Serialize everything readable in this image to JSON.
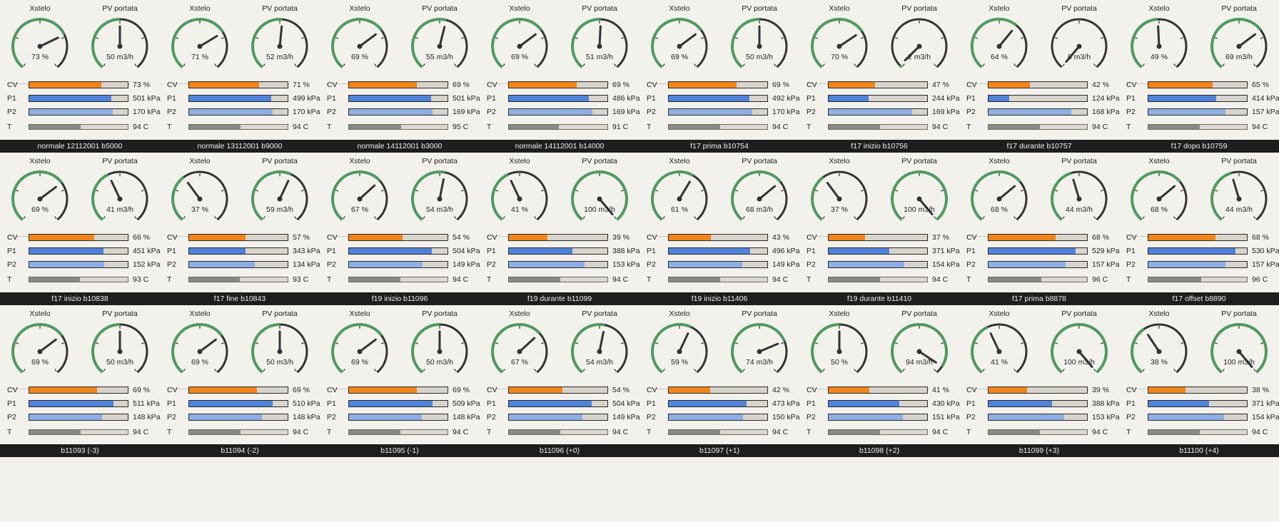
{
  "labels": {
    "gauge_left": "Xstelo",
    "gauge_right": "PV portata",
    "cv": "CV",
    "p1": "P1",
    "p2": "P2",
    "t": "T"
  },
  "colors": {
    "cv": "#f28518",
    "p1": "#4f82d8",
    "p2": "#8eafe3",
    "t": "#8a8983",
    "gauge_arc": "#4f9a5f",
    "gauge_track": "#333333",
    "needle": "#333333"
  },
  "rows": [
    {
      "caption": null,
      "panels": [
        {
          "xstelo": 73,
          "xstelo_label": "73 %",
          "pv": 50,
          "pv_label": "50 m3/h",
          "cv": 73,
          "cv_label": "73 %",
          "p1": 501,
          "p1_label": "501 kPa",
          "p2": 170,
          "p2_label": "170 kPa",
          "t": 94,
          "t_label": "94 C"
        },
        {
          "xstelo": 71,
          "xstelo_label": "71 %",
          "pv": 52,
          "pv_label": "52 m3/h",
          "cv": 71,
          "cv_label": "71 %",
          "p1": 499,
          "p1_label": "499 kPa",
          "p2": 170,
          "p2_label": "170 kPa",
          "t": 94,
          "t_label": "94 C"
        },
        {
          "xstelo": 69,
          "xstelo_label": "69 %",
          "pv": 55,
          "pv_label": "55 m3/h",
          "cv": 69,
          "cv_label": "69 %",
          "p1": 501,
          "p1_label": "501 kPa",
          "p2": 169,
          "p2_label": "169 kPa",
          "t": 95,
          "t_label": "95 C"
        },
        {
          "xstelo": 69,
          "xstelo_label": "69 %",
          "pv": 51,
          "pv_label": "51 m3/h",
          "cv": 69,
          "cv_label": "69 %",
          "p1": 486,
          "p1_label": "486 kPa",
          "p2": 169,
          "p2_label": "169 kPa",
          "t": 91,
          "t_label": "91 C"
        },
        {
          "xstelo": 69,
          "xstelo_label": "69 %",
          "pv": 50,
          "pv_label": "50 m3/h",
          "cv": 69,
          "cv_label": "69 %",
          "p1": 492,
          "p1_label": "492 kPa",
          "p2": 170,
          "p2_label": "170 kPa",
          "t": 94,
          "t_label": "94 C"
        },
        {
          "xstelo": 70,
          "xstelo_label": "70 %",
          "pv": 2,
          "pv_label": "2 m3/h",
          "cv": 47,
          "cv_label": "47 %",
          "p1": 244,
          "p1_label": "244 kPa",
          "p2": 169,
          "p2_label": "169 kPa",
          "t": 94,
          "t_label": "94 C"
        },
        {
          "xstelo": 64,
          "xstelo_label": "64 %",
          "pv": 0,
          "pv_label": "0 m3/h",
          "cv": 42,
          "cv_label": "42 %",
          "p1": 124,
          "p1_label": "124 kPa",
          "p2": 168,
          "p2_label": "168 kPa",
          "t": 94,
          "t_label": "94 C"
        },
        {
          "xstelo": 49,
          "xstelo_label": "49 %",
          "pv": 69,
          "pv_label": "69 m3/h",
          "cv": 65,
          "cv_label": "65 %",
          "p1": 414,
          "p1_label": "414 kPa",
          "p2": 157,
          "p2_label": "157 kPa",
          "t": 94,
          "t_label": "94 C"
        }
      ]
    },
    {
      "caption": [
        "normale 12112001 b5000",
        "normale 13112001 b9000",
        "normale 14112001 b3000",
        "normale 14112001 b14000",
        "f17 prima b10754",
        "f17 inizio b10756",
        "f17 durante b10757",
        "f17 dopo b10759"
      ],
      "panels": [
        {
          "xstelo": 69,
          "xstelo_label": "69 %",
          "pv": 41,
          "pv_label": "41 m3/h",
          "cv": 66,
          "cv_label": "66 %",
          "p1": 451,
          "p1_label": "451 kPa",
          "p2": 152,
          "p2_label": "152 kPa",
          "t": 93,
          "t_label": "93 C"
        },
        {
          "xstelo": 37,
          "xstelo_label": "37 %",
          "pv": 59,
          "pv_label": "59 m3/h",
          "cv": 57,
          "cv_label": "57 %",
          "p1": 343,
          "p1_label": "343 kPa",
          "p2": 134,
          "p2_label": "134 kPa",
          "t": 93,
          "t_label": "93 C"
        },
        {
          "xstelo": 67,
          "xstelo_label": "67 %",
          "pv": 54,
          "pv_label": "54 m3/h",
          "cv": 54,
          "cv_label": "54 %",
          "p1": 504,
          "p1_label": "504 kPa",
          "p2": 149,
          "p2_label": "149 kPa",
          "t": 94,
          "t_label": "94 C"
        },
        {
          "xstelo": 41,
          "xstelo_label": "41 %",
          "pv": 100,
          "pv_label": "100 m3/h",
          "cv": 39,
          "cv_label": "39 %",
          "p1": 388,
          "p1_label": "388 kPa",
          "p2": 153,
          "p2_label": "153 kPa",
          "t": 94,
          "t_label": "94 C"
        },
        {
          "xstelo": 61,
          "xstelo_label": "61 %",
          "pv": 68,
          "pv_label": "68 m3/h",
          "cv": 43,
          "cv_label": "43 %",
          "p1": 496,
          "p1_label": "496 kPa",
          "p2": 149,
          "p2_label": "149 kPa",
          "t": 94,
          "t_label": "94 C"
        },
        {
          "xstelo": 37,
          "xstelo_label": "37 %",
          "pv": 100,
          "pv_label": "100 m3/h",
          "cv": 37,
          "cv_label": "37 %",
          "p1": 371,
          "p1_label": "371 kPa",
          "p2": 154,
          "p2_label": "154 kPa",
          "t": 94,
          "t_label": "94 C"
        },
        {
          "xstelo": 68,
          "xstelo_label": "68 %",
          "pv": 44,
          "pv_label": "44 m3/h",
          "cv": 68,
          "cv_label": "68 %",
          "p1": 529,
          "p1_label": "529 kPa",
          "p2": 157,
          "p2_label": "157 kPa",
          "t": 96,
          "t_label": "96 C"
        },
        {
          "xstelo": 68,
          "xstelo_label": "68 %",
          "pv": 44,
          "pv_label": "44 m3/h",
          "cv": 68,
          "cv_label": "68 %",
          "p1": 530,
          "p1_label": "530 kPa",
          "p2": 157,
          "p2_label": "157 kPa",
          "t": 96,
          "t_label": "96 C"
        }
      ]
    },
    {
      "caption": [
        "f17 inizio b10838",
        "f17 fine b10843",
        "f19 inizio b11096",
        "f19 durante b11099",
        "f19 inizio b11406",
        "f19 durante b11410",
        "f17 prima b8878",
        "f17 offset b8890"
      ],
      "panels": [
        {
          "xstelo": 69,
          "xstelo_label": "69 %",
          "pv": 50,
          "pv_label": "50 m3/h",
          "cv": 69,
          "cv_label": "69 %",
          "p1": 511,
          "p1_label": "511 kPa",
          "p2": 148,
          "p2_label": "148 kPa",
          "t": 94,
          "t_label": "94 C"
        },
        {
          "xstelo": 69,
          "xstelo_label": "69 %",
          "pv": 50,
          "pv_label": "50 m3/h",
          "cv": 69,
          "cv_label": "69 %",
          "p1": 510,
          "p1_label": "510 kPa",
          "p2": 148,
          "p2_label": "148 kPa",
          "t": 94,
          "t_label": "94 C"
        },
        {
          "xstelo": 69,
          "xstelo_label": "69 %",
          "pv": 50,
          "pv_label": "50 m3/h",
          "cv": 69,
          "cv_label": "69 %",
          "p1": 509,
          "p1_label": "509 kPa",
          "p2": 148,
          "p2_label": "148 kPa",
          "t": 94,
          "t_label": "94 C"
        },
        {
          "xstelo": 67,
          "xstelo_label": "67 %",
          "pv": 54,
          "pv_label": "54 m3/h",
          "cv": 54,
          "cv_label": "54 %",
          "p1": 504,
          "p1_label": "504 kPa",
          "p2": 149,
          "p2_label": "149 kPa",
          "t": 94,
          "t_label": "94 C"
        },
        {
          "xstelo": 59,
          "xstelo_label": "59 %",
          "pv": 74,
          "pv_label": "74 m3/h",
          "cv": 42,
          "cv_label": "42 %",
          "p1": 473,
          "p1_label": "473 kPa",
          "p2": 150,
          "p2_label": "150 kPa",
          "t": 94,
          "t_label": "94 C"
        },
        {
          "xstelo": 50,
          "xstelo_label": "50 %",
          "pv": 94,
          "pv_label": "94 m3/h",
          "cv": 41,
          "cv_label": "41 %",
          "p1": 430,
          "p1_label": "430 kPa",
          "p2": 151,
          "p2_label": "151 kPa",
          "t": 94,
          "t_label": "94 C"
        },
        {
          "xstelo": 41,
          "xstelo_label": "41 %",
          "pv": 100,
          "pv_label": "100 m3/h",
          "cv": 39,
          "cv_label": "39 %",
          "p1": 388,
          "p1_label": "388 kPa",
          "p2": 153,
          "p2_label": "153 kPa",
          "t": 94,
          "t_label": "94 C"
        },
        {
          "xstelo": 38,
          "xstelo_label": "38 %",
          "pv": 100,
          "pv_label": "100 m3/h",
          "cv": 38,
          "cv_label": "38 %",
          "p1": 371,
          "p1_label": "371 kPa",
          "p2": 154,
          "p2_label": "154 kPa",
          "t": 94,
          "t_label": "94 C"
        }
      ]
    },
    {
      "caption": [
        "b11093 (-3)",
        "b11094 (-2)",
        "b11095 (-1)",
        "b11096 (+0)",
        "b11097 (+1)",
        "b11098 (+2)",
        "b11099 (+3)",
        "b11100 (+4)"
      ],
      "panels": []
    }
  ],
  "ranges": {
    "pv_max": 100,
    "p1_max": 600,
    "p2_max": 200,
    "t_max": 180
  }
}
